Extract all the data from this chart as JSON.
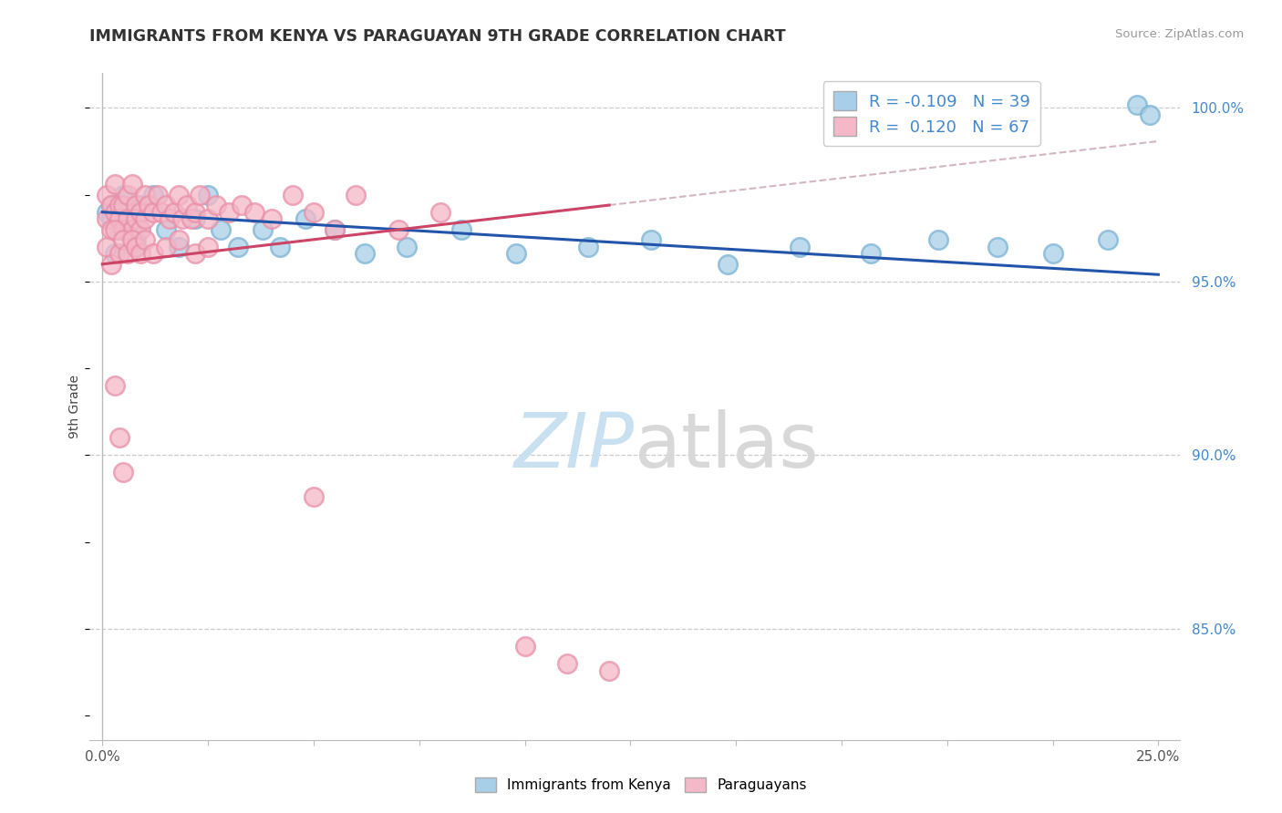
{
  "title": "IMMIGRANTS FROM KENYA VS PARAGUAYAN 9TH GRADE CORRELATION CHART",
  "source": "Source: ZipAtlas.com",
  "ylabel": "9th Grade",
  "ylabel_right_ticks": [
    "100.0%",
    "95.0%",
    "90.0%",
    "85.0%"
  ],
  "ylabel_right_vals": [
    1.0,
    0.95,
    0.9,
    0.85
  ],
  "legend_r_kenya": "-0.109",
  "legend_n_kenya": "39",
  "legend_r_paraguay": "0.120",
  "legend_n_paraguay": "67",
  "blue_color": "#a8cfe8",
  "blue_edge_color": "#7ab3d4",
  "pink_color": "#f4b8c8",
  "pink_edge_color": "#e890a8",
  "blue_line_color": "#2255aa",
  "pink_line_color": "#cc4466",
  "dashed_color": "#ccaabb",
  "kenya_x": [
    0.001,
    0.002,
    0.003,
    0.004,
    0.005,
    0.006,
    0.007,
    0.008,
    0.009,
    0.012,
    0.015,
    0.018,
    0.022,
    0.025,
    0.028,
    0.032,
    0.038,
    0.042,
    0.048,
    0.055,
    0.062,
    0.072,
    0.085,
    0.098,
    0.115,
    0.13,
    0.148,
    0.165,
    0.182,
    0.198,
    0.212,
    0.225,
    0.238,
    0.245,
    0.248,
    0.002,
    0.003,
    0.005,
    0.008
  ],
  "kenya_y": [
    0.97,
    0.968,
    0.972,
    0.965,
    0.975,
    0.968,
    0.97,
    0.962,
    0.972,
    0.975,
    0.965,
    0.96,
    0.968,
    0.975,
    0.965,
    0.96,
    0.965,
    0.96,
    0.968,
    0.965,
    0.958,
    0.96,
    0.965,
    0.958,
    0.96,
    0.962,
    0.955,
    0.96,
    0.958,
    0.962,
    0.96,
    0.958,
    0.962,
    1.001,
    0.998,
    0.972,
    0.958,
    0.965,
    0.96
  ],
  "paraguay_x": [
    0.001,
    0.001,
    0.002,
    0.002,
    0.003,
    0.003,
    0.004,
    0.004,
    0.005,
    0.005,
    0.006,
    0.006,
    0.007,
    0.007,
    0.008,
    0.008,
    0.009,
    0.009,
    0.01,
    0.01,
    0.011,
    0.012,
    0.013,
    0.014,
    0.015,
    0.016,
    0.017,
    0.018,
    0.019,
    0.02,
    0.021,
    0.022,
    0.023,
    0.025,
    0.027,
    0.03,
    0.033,
    0.036,
    0.04,
    0.045,
    0.05,
    0.055,
    0.06,
    0.07,
    0.08,
    0.001,
    0.002,
    0.003,
    0.004,
    0.005,
    0.006,
    0.007,
    0.008,
    0.009,
    0.01,
    0.012,
    0.015,
    0.018,
    0.022,
    0.025,
    0.003,
    0.004,
    0.005,
    0.05,
    0.1,
    0.11,
    0.12
  ],
  "paraguay_y": [
    0.975,
    0.968,
    0.972,
    0.965,
    0.978,
    0.97,
    0.972,
    0.968,
    0.972,
    0.965,
    0.975,
    0.968,
    0.978,
    0.965,
    0.972,
    0.968,
    0.97,
    0.965,
    0.975,
    0.968,
    0.972,
    0.97,
    0.975,
    0.97,
    0.972,
    0.968,
    0.97,
    0.975,
    0.968,
    0.972,
    0.968,
    0.97,
    0.975,
    0.968,
    0.972,
    0.97,
    0.972,
    0.97,
    0.968,
    0.975,
    0.97,
    0.965,
    0.975,
    0.965,
    0.97,
    0.96,
    0.955,
    0.965,
    0.958,
    0.962,
    0.958,
    0.962,
    0.96,
    0.958,
    0.962,
    0.958,
    0.96,
    0.962,
    0.958,
    0.96,
    0.92,
    0.905,
    0.895,
    0.888,
    0.845,
    0.84,
    0.838
  ],
  "xlim": [
    -0.003,
    0.255
  ],
  "ylim": [
    0.818,
    1.01
  ],
  "xrange": [
    0.0,
    0.25
  ],
  "watermark_zip_color": "#c8e0f0",
  "watermark_atlas_color": "#d8d8d8"
}
